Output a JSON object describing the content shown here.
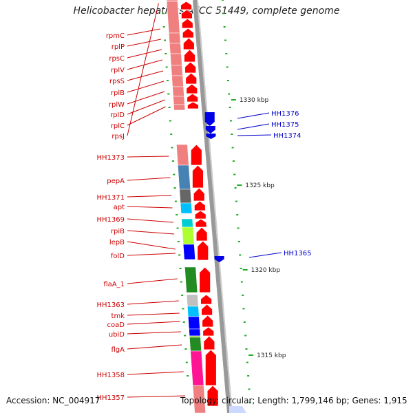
{
  "title": "Helicobacter hepaticus ATCC 51449, complete genome",
  "footer": {
    "accession": "Accession: NC_004917",
    "summary": "Topology: circular; Length: 1,799,146 bp; Genes: 1,915"
  },
  "scale_labels": [
    "1330 kbp",
    "1325 kbp",
    "1320 kbp",
    "1315 kbp"
  ],
  "colors": {
    "forward_arrow": "#ff0000",
    "reverse_arrow": "#0000e6",
    "label_red": "#cc0000",
    "label_blue": "#0000cc",
    "tick_green": "#22aa22",
    "backbone": "#888888"
  },
  "left_labels": [
    "rpmC",
    "rplP",
    "rpsC",
    "rplV",
    "rpsS",
    "rplB",
    "rplW",
    "rplD",
    "rplC",
    "rpsJ",
    "HH1373",
    "pepA",
    "HH1371",
    "apt",
    "HH1369",
    "rpiB",
    "lepB",
    "folD",
    "flaA_1",
    "HH1363",
    "tmk",
    "coaD",
    "ubiD",
    "flgA",
    "HH1358",
    "HH1357"
  ],
  "right_labels": [
    "HH1376",
    "HH1375",
    "HH1374",
    "HH1365"
  ],
  "category_colors": [
    "#f08080",
    "#f08080",
    "#f08080",
    "#f08080",
    "#f08080",
    "#f08080",
    "#f08080",
    "#f08080",
    "#f08080",
    "#f08080",
    "#f08080",
    "#4682b4",
    "#666666",
    "#00bfff",
    "#00ced1",
    "#adff2f",
    "#0000ff",
    "#228b22",
    "#c0c0c0",
    "#00bfff",
    "#0000ff",
    "#0000ff",
    "#9acd32",
    "#228b22",
    "#ff1493",
    "#f08080"
  ]
}
